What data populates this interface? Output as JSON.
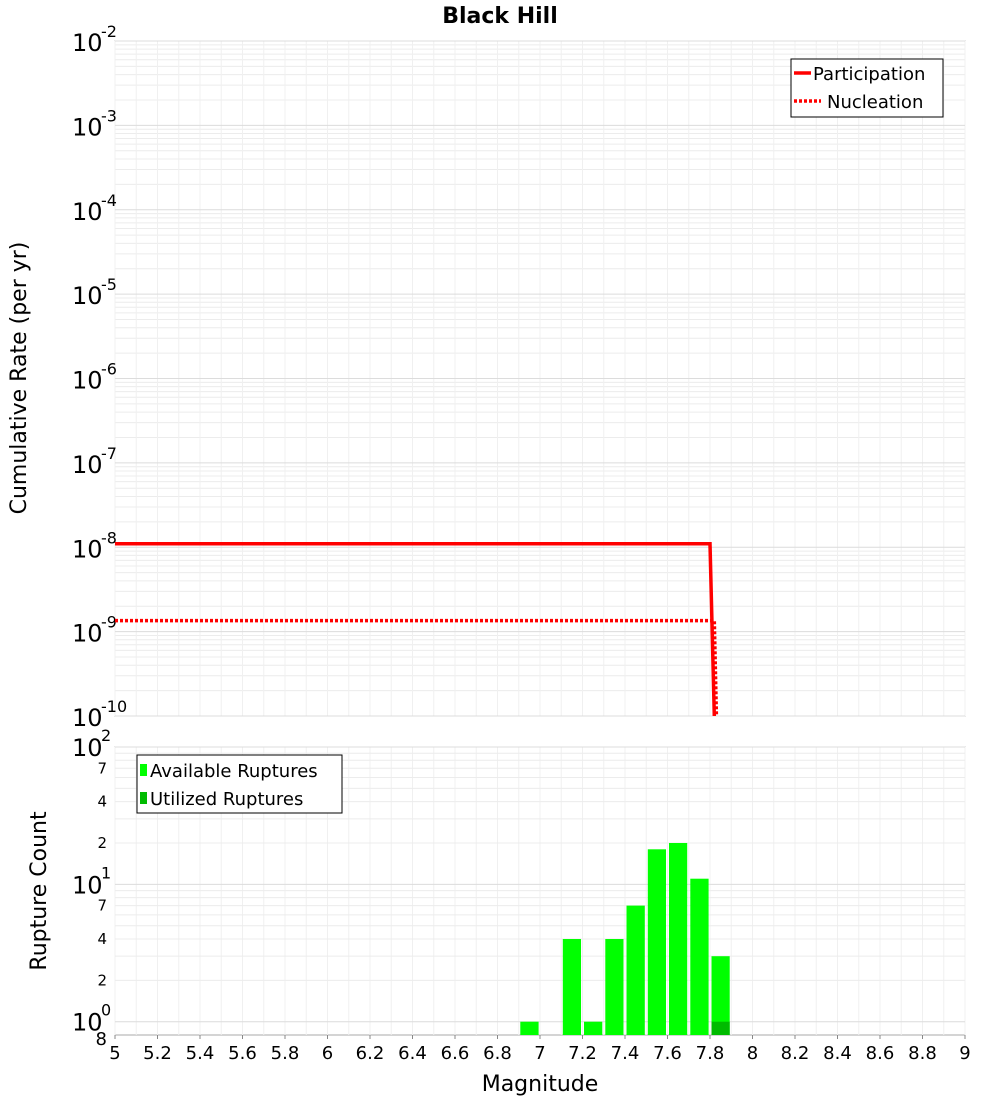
{
  "title": "Black Hill",
  "chart_data": [
    {
      "type": "line",
      "ylabel": "Cumulative Rate (per yr)",
      "yscale": "log",
      "xlim": [
        5,
        9
      ],
      "ylim": [
        1e-10,
        0.01
      ],
      "y_ticks": [
        {
          "base": "10",
          "exp": "-2"
        },
        {
          "base": "10",
          "exp": "-3"
        },
        {
          "base": "10",
          "exp": "-4"
        },
        {
          "base": "10",
          "exp": "-5"
        },
        {
          "base": "10",
          "exp": "-6"
        },
        {
          "base": "10",
          "exp": "-7"
        },
        {
          "base": "10",
          "exp": "-8"
        },
        {
          "base": "10",
          "exp": "-9"
        },
        {
          "base": "10",
          "exp": "-10"
        }
      ],
      "grid": true,
      "legend_position": "top-right",
      "series": [
        {
          "name": "Participation",
          "style": "solid",
          "color": "#ff0000",
          "x": [
            5,
            7.8,
            7.82
          ],
          "y": [
            1.1e-08,
            1.1e-08,
            1e-10
          ]
        },
        {
          "name": "Nucleation",
          "style": "dotted",
          "color": "#ff0000",
          "x": [
            5,
            7.82,
            7.83
          ],
          "y": [
            1.35e-09,
            1.35e-09,
            1e-10
          ]
        }
      ]
    },
    {
      "type": "bar",
      "ylabel": "Rupture Count",
      "xlabel": "Magnitude",
      "yscale": "log",
      "xlim": [
        5,
        9
      ],
      "ylim": [
        0.8,
        100
      ],
      "y_major_ticks": [
        {
          "base": "10",
          "exp": "0"
        },
        {
          "base": "10",
          "exp": "1"
        },
        {
          "base": "10",
          "exp": "2"
        }
      ],
      "y_minor_labels": [
        "8",
        "2",
        "4",
        "7",
        "2",
        "4",
        "7"
      ],
      "x_ticks": [
        "5",
        "5.2",
        "5.4",
        "5.6",
        "5.8",
        "6",
        "6.2",
        "6.4",
        "6.6",
        "6.8",
        "7",
        "7.2",
        "7.4",
        "7.6",
        "7.8",
        "8",
        "8.2",
        "8.4",
        "8.6",
        "8.8",
        "9"
      ],
      "grid": true,
      "legend_position": "top-left",
      "bin_width": 0.1,
      "series": [
        {
          "name": "Available Ruptures",
          "color": "#00ff00",
          "x": [
            6.95,
            7.15,
            7.25,
            7.35,
            7.45,
            7.55,
            7.65,
            7.75,
            7.85
          ],
          "values": [
            1,
            4,
            1,
            4,
            7,
            18,
            20,
            11,
            3
          ]
        },
        {
          "name": "Utilized Ruptures",
          "color": "#00bb00",
          "x": [
            7.85
          ],
          "values": [
            1
          ]
        }
      ]
    }
  ]
}
